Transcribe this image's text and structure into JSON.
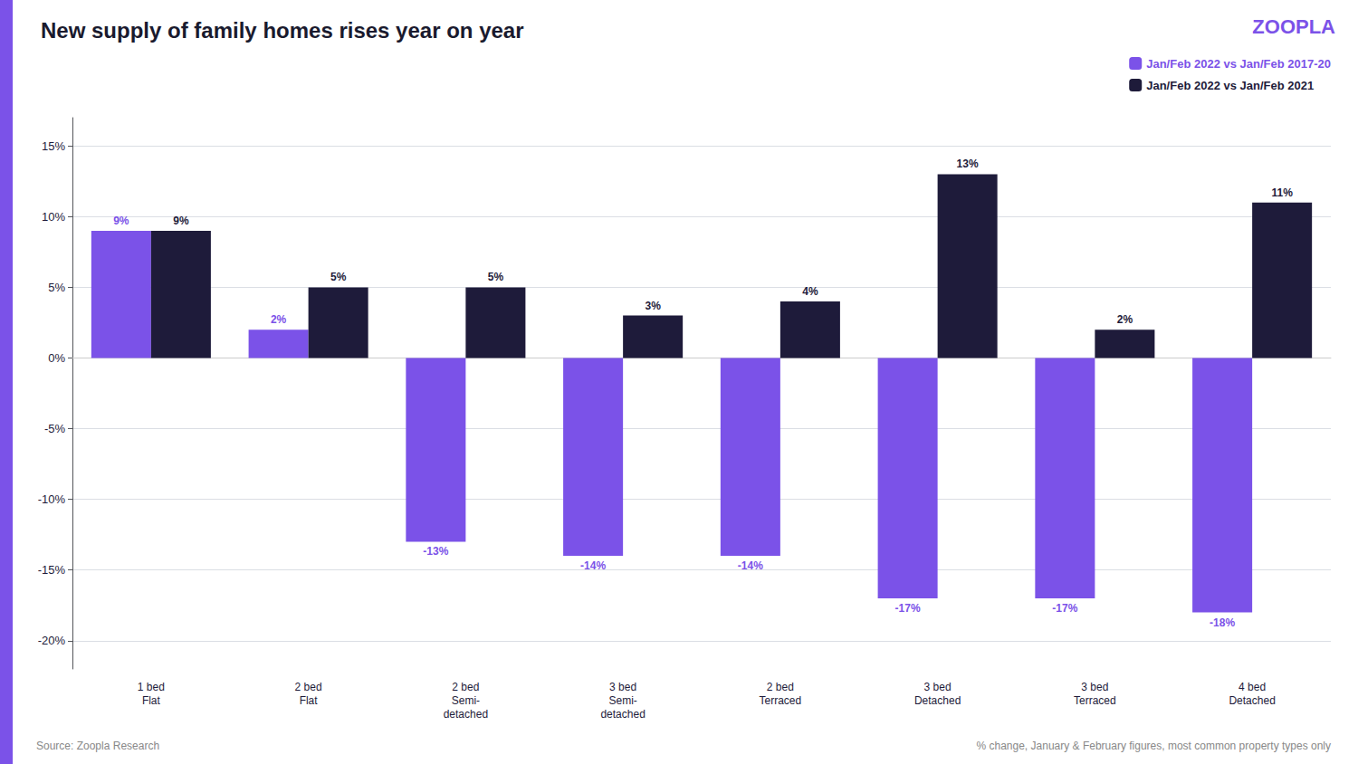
{
  "chart_data": {
    "type": "bar",
    "title": "New supply of family homes rises year on year",
    "categories": [
      "1 bed\nFlat",
      "2 bed\nFlat",
      "2 bed\nSemi-\ndetached",
      "3 bed\nSemi-\ndetached",
      "2 bed\nTerraced",
      "3 bed\nDetached",
      "3 bed\nTerraced",
      "4 bed\nDetached"
    ],
    "series": [
      {
        "name": "Jan/Feb 2022 vs Jan/Feb 2017-20",
        "color": "#7B52E8",
        "values": [
          9,
          2,
          -13,
          -14,
          -14,
          -17,
          -17,
          -18
        ],
        "value_labels": [
          "9%",
          "2%",
          "-13%",
          "-14%",
          "-14%",
          "-17%",
          "-17%",
          "-18%"
        ]
      },
      {
        "name": "Jan/Feb 2022 vs Jan/Feb 2021",
        "color": "#1E1B3A",
        "values": [
          9,
          5,
          5,
          3,
          4,
          13,
          2,
          11
        ],
        "value_labels": [
          "9%",
          "5%",
          "5%",
          "3%",
          "4%",
          "13%",
          "2%",
          "11%"
        ]
      }
    ],
    "ylim": [
      -22,
      17
    ],
    "yticks": [
      {
        "value": -20,
        "label": "-20%"
      },
      {
        "value": -15,
        "label": "-15%"
      },
      {
        "value": -10,
        "label": "-10%"
      },
      {
        "value": -5,
        "label": "-5%"
      },
      {
        "value": 0,
        "label": "0%"
      },
      {
        "value": 5,
        "label": "5%"
      },
      {
        "value": 10,
        "label": "10%"
      },
      {
        "value": 15,
        "label": "15%"
      }
    ],
    "grid": true,
    "legend": "upper right",
    "data_labels": true,
    "annotations": [
      "Source: Zoopla Research",
      "% change, January & February figures, most common property types only",
      "ZOOPLA"
    ]
  }
}
